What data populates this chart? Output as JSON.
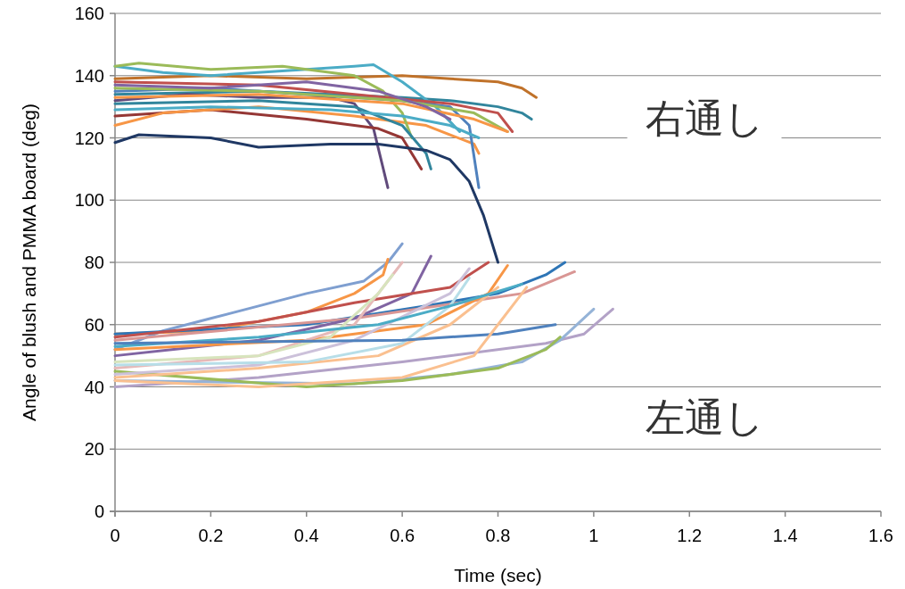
{
  "chart_data": {
    "type": "line",
    "xlabel": "Time (sec)",
    "ylabel": "Angle of blush and PMMA board (deg)",
    "xlim": [
      0,
      1.6
    ],
    "xticks": [
      0,
      0.2,
      0.4,
      0.6,
      0.8,
      1,
      1.2,
      1.4,
      1.6
    ],
    "ylim": [
      0,
      160
    ],
    "yticks": [
      0,
      20,
      40,
      60,
      80,
      100,
      120,
      140,
      160
    ],
    "grid": "y",
    "marker": "none",
    "line_style": "solid",
    "annotations": [
      "右通し",
      "左通し"
    ],
    "series": [
      {
        "color": "#c0722a",
        "x": [
          0,
          0.2,
          0.4,
          0.6,
          0.7,
          0.8,
          0.85,
          0.88
        ],
        "values": [
          139,
          140,
          139,
          140,
          139,
          138,
          136,
          133
        ]
      },
      {
        "color": "#31859c",
        "x": [
          0,
          0.3,
          0.6,
          0.7,
          0.8,
          0.85,
          0.87
        ],
        "values": [
          134,
          135,
          133,
          132,
          130,
          128,
          126
        ]
      },
      {
        "color": "#604a7b",
        "x": [
          0,
          0.15,
          0.3,
          0.45,
          0.5,
          0.54,
          0.57
        ],
        "values": [
          132,
          134,
          133,
          133,
          131,
          123,
          104
        ]
      },
      {
        "color": "#953735",
        "x": [
          0,
          0.1,
          0.2,
          0.4,
          0.55,
          0.6,
          0.64
        ],
        "values": [
          127,
          128,
          129,
          126,
          123,
          120,
          110
        ]
      },
      {
        "color": "#f79646",
        "x": [
          0,
          0.1,
          0.3,
          0.5,
          0.65,
          0.75,
          0.76
        ],
        "values": [
          124,
          128,
          130,
          127,
          124,
          118,
          115
        ]
      },
      {
        "color": "#4bacc6",
        "x": [
          0,
          0.1,
          0.2,
          0.4,
          0.5,
          0.54,
          0.6,
          0.67,
          0.72
        ],
        "values": [
          143,
          141,
          140,
          142,
          143,
          143.5,
          138,
          130,
          122
        ]
      },
      {
        "color": "#9bbb59",
        "x": [
          0,
          0.05,
          0.2,
          0.35,
          0.5,
          0.56,
          0.6,
          0.62
        ],
        "values": [
          143,
          144,
          142,
          143,
          140,
          135,
          128,
          120
        ]
      },
      {
        "color": "#4f81bd",
        "x": [
          0,
          0.2,
          0.4,
          0.6,
          0.7,
          0.74,
          0.76
        ],
        "values": [
          135,
          136,
          134,
          132,
          130,
          124,
          104
        ]
      },
      {
        "color": "#c0504d",
        "x": [
          0,
          0.3,
          0.5,
          0.7,
          0.8,
          0.83
        ],
        "values": [
          138,
          137,
          134,
          131,
          128,
          122
        ]
      },
      {
        "color": "#31859c",
        "x": [
          0,
          0.3,
          0.5,
          0.6,
          0.65,
          0.66
        ],
        "values": [
          131,
          132,
          130,
          124,
          115,
          110
        ]
      },
      {
        "color": "#9bbb59",
        "x": [
          0,
          0.3,
          0.6,
          0.75,
          0.82
        ],
        "values": [
          136,
          135,
          132,
          128,
          122
        ]
      },
      {
        "color": "#f79646",
        "x": [
          0,
          0.3,
          0.6,
          0.75,
          0.82
        ],
        "values": [
          133,
          134,
          131,
          126,
          122
        ]
      },
      {
        "color": "#8064a2",
        "x": [
          0,
          0.2,
          0.4,
          0.55,
          0.65,
          0.7
        ],
        "values": [
          137,
          136,
          138,
          135,
          130,
          126
        ]
      },
      {
        "color": "#4bacc6",
        "x": [
          0,
          0.2,
          0.45,
          0.6,
          0.7,
          0.76
        ],
        "values": [
          129,
          130,
          129,
          127,
          124,
          120
        ]
      },
      {
        "color": "#1f3864",
        "x": [
          0,
          0.05,
          0.2,
          0.3,
          0.45,
          0.55,
          0.65,
          0.7,
          0.74,
          0.77,
          0.8
        ],
        "values": [
          118.5,
          121,
          120,
          117,
          118,
          118,
          116,
          113,
          106,
          95,
          80
        ]
      },
      {
        "color": "#7f9fd0",
        "x": [
          0,
          0.1,
          0.2,
          0.3,
          0.4,
          0.52,
          0.57,
          0.6
        ],
        "values": [
          52,
          58,
          62,
          66,
          70,
          74,
          80,
          86
        ]
      },
      {
        "color": "#f79646",
        "x": [
          0,
          0.2,
          0.4,
          0.5,
          0.56,
          0.57
        ],
        "values": [
          57,
          58,
          64,
          70,
          76,
          81
        ]
      },
      {
        "color": "#2e75b6",
        "x": [
          0,
          0.4,
          0.65,
          0.8,
          0.9,
          0.94
        ],
        "values": [
          57,
          60,
          66,
          70,
          76,
          80
        ]
      },
      {
        "color": "#d99694",
        "x": [
          0,
          0.5,
          0.85,
          0.96
        ],
        "values": [
          55,
          62,
          70,
          77
        ]
      },
      {
        "color": "#b3a2c7",
        "x": [
          0,
          0.3,
          0.6,
          0.9,
          0.98,
          1.04
        ],
        "values": [
          40,
          43,
          48,
          54,
          57,
          65
        ]
      },
      {
        "color": "#95b3d7",
        "x": [
          0,
          0.5,
          0.7,
          0.85,
          0.93,
          1
        ],
        "values": [
          42,
          41,
          44,
          48,
          55,
          65
        ]
      },
      {
        "color": "#9bbb59",
        "x": [
          0,
          0.4,
          0.6,
          0.8,
          0.9,
          0.93
        ],
        "values": [
          45,
          40,
          42,
          46,
          52,
          56
        ]
      },
      {
        "color": "#8064a2",
        "x": [
          0,
          0.3,
          0.5,
          0.62,
          0.66
        ],
        "values": [
          50,
          55,
          62,
          70,
          82
        ]
      },
      {
        "color": "#c0504d",
        "x": [
          0,
          0.3,
          0.5,
          0.7,
          0.78
        ],
        "values": [
          56,
          61,
          67,
          72,
          80
        ]
      },
      {
        "color": "#f79646",
        "x": [
          0,
          0.4,
          0.65,
          0.78,
          0.82
        ],
        "values": [
          52,
          55,
          60,
          70,
          79
        ]
      },
      {
        "color": "#e6b9b8",
        "x": [
          0,
          0.3,
          0.5,
          0.6
        ],
        "values": [
          46,
          50,
          60,
          80
        ]
      },
      {
        "color": "#ccc1da",
        "x": [
          0,
          0.3,
          0.5,
          0.7,
          0.74
        ],
        "values": [
          44,
          47,
          55,
          70,
          78
        ]
      },
      {
        "color": "#fac090",
        "x": [
          0,
          0.3,
          0.55,
          0.7,
          0.8
        ],
        "values": [
          43,
          46,
          50,
          60,
          72
        ]
      },
      {
        "color": "#d7e4bd",
        "x": [
          0,
          0.3,
          0.45,
          0.55,
          0.58
        ],
        "values": [
          48,
          50,
          56,
          70,
          76
        ]
      },
      {
        "color": "#b7dee8",
        "x": [
          0,
          0.4,
          0.6,
          0.7,
          0.74
        ],
        "values": [
          47,
          48,
          54,
          66,
          75
        ]
      },
      {
        "color": "#4bacc6",
        "x": [
          0,
          0.3,
          0.55,
          0.7,
          0.85
        ],
        "values": [
          53,
          56,
          60,
          66,
          73
        ]
      },
      {
        "color": "#4f81bd",
        "x": [
          0,
          0.6,
          0.8,
          0.92
        ],
        "values": [
          54,
          55,
          57,
          60
        ]
      },
      {
        "color": "#fac090",
        "x": [
          0,
          0.3,
          0.6,
          0.75,
          0.8,
          0.86
        ],
        "values": [
          42,
          40,
          43,
          50,
          60,
          72
        ]
      }
    ]
  }
}
